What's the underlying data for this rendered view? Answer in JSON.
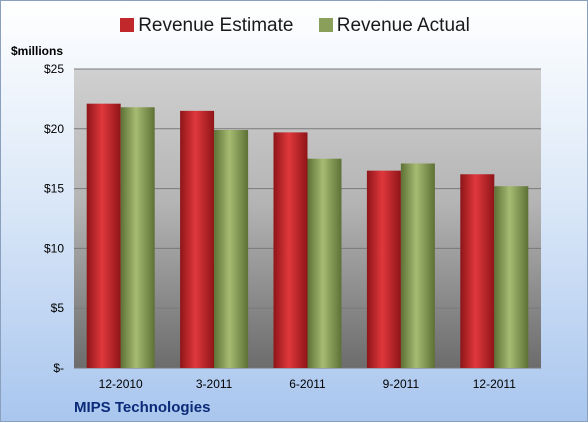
{
  "legend": {
    "estimate_label": "Revenue Estimate",
    "actual_label": "Revenue Actual"
  },
  "unit_label": "$millions",
  "company": "MIPS Technologies",
  "colors": {
    "estimate": "#c0282c",
    "actual": "#8aa05a"
  },
  "chart_data": {
    "type": "bar",
    "categories": [
      "12-2010",
      "3-2011",
      "6-2011",
      "9-2011",
      "12-2011"
    ],
    "series": [
      {
        "name": "Revenue Estimate",
        "values": [
          22.1,
          21.5,
          19.7,
          16.5,
          16.2
        ]
      },
      {
        "name": "Revenue Actual",
        "values": [
          21.8,
          19.9,
          17.5,
          17.1,
          15.2
        ]
      }
    ],
    "ylabel": "$millions",
    "ylim": [
      0,
      25
    ],
    "yticks": [
      0,
      5,
      10,
      15,
      20,
      25
    ],
    "ytick_labels": [
      "$-",
      "$5",
      "$10",
      "$15",
      "$20",
      "$25"
    ],
    "grid": true,
    "legend_position": "top"
  }
}
